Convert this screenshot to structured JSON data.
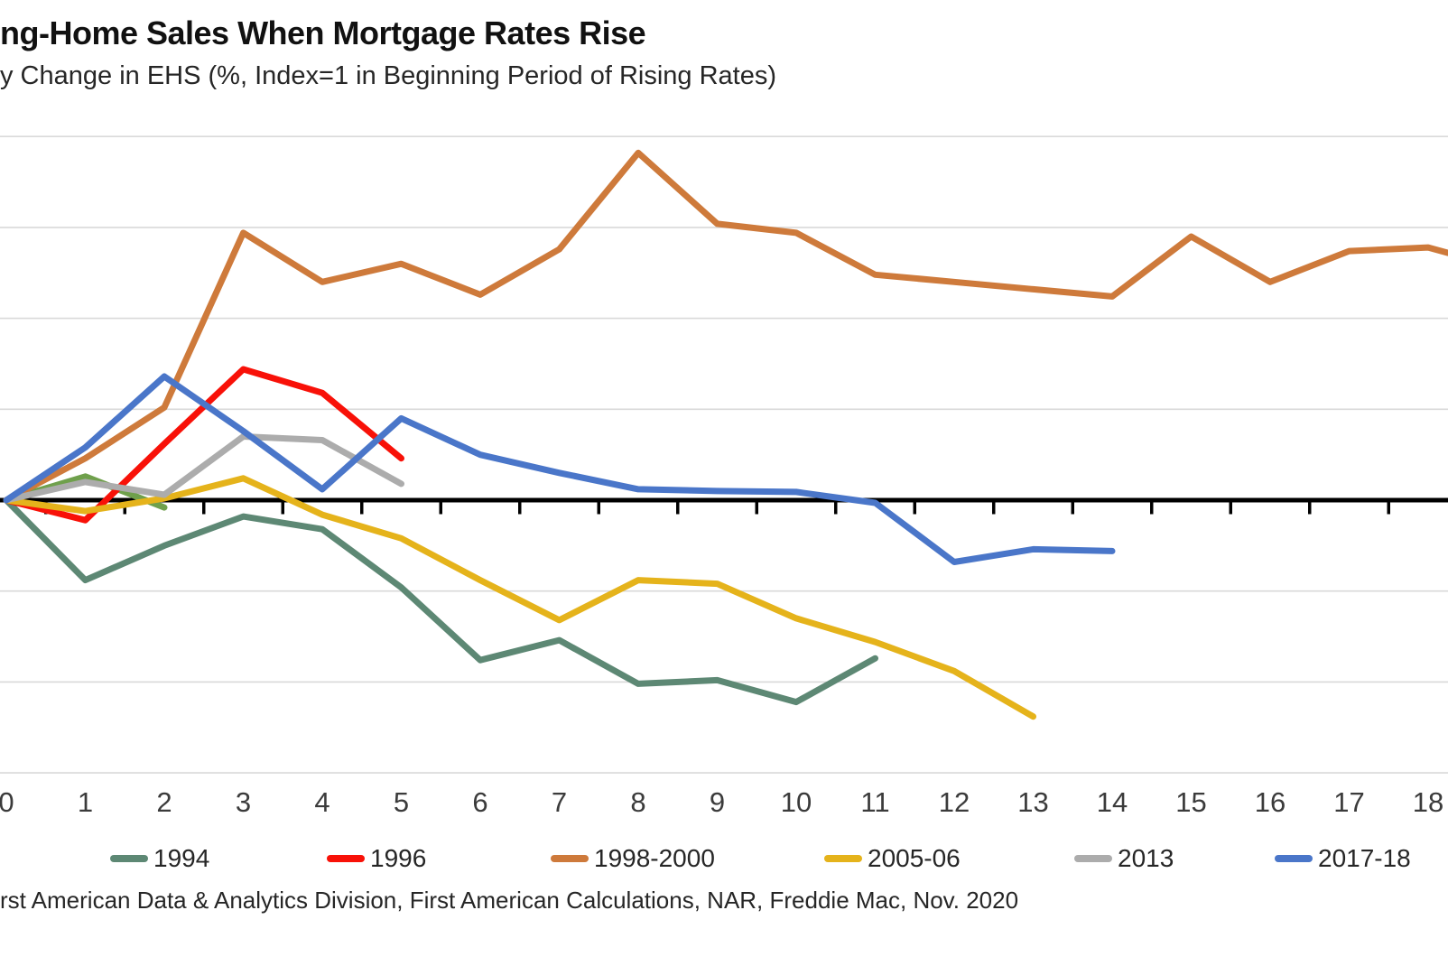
{
  "header": {
    "title": "ng-Home Sales When Mortgage Rates Rise",
    "subtitle": "y Change in EHS (%, Index=1 in Beginning Period of Rising Rates)"
  },
  "footer": {
    "source": "rst American Data & Analytics Division, First American Calculations, NAR, Freddie Mac, Nov. 2020"
  },
  "colors": {
    "axis": "#000000",
    "gridline": "#D9D9D9",
    "tick_label": "#3B3B3B"
  },
  "chart_data": {
    "type": "line",
    "title": "ng-Home Sales When Mortgage Rates Rise",
    "subtitle": "y Change in EHS (%, Index=1 in Beginning Period of Rising Rates)",
    "xlabel": "",
    "ylabel": "",
    "x_tick_labels": [
      "0",
      "1",
      "2",
      "3",
      "4",
      "5",
      "6",
      "7",
      "8",
      "9",
      "10",
      "11",
      "12",
      "13",
      "14",
      "15",
      "16",
      "17",
      "18"
    ],
    "baseline_value": 1.0,
    "gridline_values": [
      1.2,
      1.15,
      1.1,
      1.05,
      0.95,
      0.9,
      0.85
    ],
    "ylim": [
      0.845,
      1.225
    ],
    "grid_on": true,
    "legend_position": "bottom",
    "series": [
      {
        "label": "",
        "color": "#6FA04C",
        "in_legend": false,
        "x": [
          0,
          1,
          2
        ],
        "values": [
          1.0,
          1.013,
          0.996
        ]
      },
      {
        "label": "1994",
        "color": "#5D8874",
        "in_legend": true,
        "x": [
          0,
          1,
          2,
          3,
          4,
          5,
          6,
          7,
          8,
          9,
          10,
          11
        ],
        "values": [
          1.0,
          0.956,
          0.975,
          0.991,
          0.984,
          0.952,
          0.912,
          0.923,
          0.899,
          0.901,
          0.889,
          0.913
        ]
      },
      {
        "label": "1996",
        "color": "#F81108",
        "in_legend": true,
        "x": [
          0,
          1,
          2,
          3,
          4,
          5
        ],
        "values": [
          1.0,
          0.989,
          1.031,
          1.072,
          1.059,
          1.023
        ]
      },
      {
        "label": "1998-2000",
        "color": "#CE7A3B",
        "in_legend": true,
        "x": [
          0,
          1,
          2,
          3,
          4,
          5,
          6,
          7,
          8,
          9,
          10,
          11,
          12,
          13,
          14,
          15,
          16,
          17,
          18,
          18.25
        ],
        "values": [
          1.0,
          1.023,
          1.051,
          1.147,
          1.12,
          1.13,
          1.113,
          1.138,
          1.191,
          1.152,
          1.147,
          1.124,
          1.12,
          1.116,
          1.112,
          1.145,
          1.12,
          1.137,
          1.139,
          1.136
        ]
      },
      {
        "label": "2005-06",
        "color": "#E5B31B",
        "in_legend": true,
        "x": [
          0,
          1,
          2,
          3,
          4,
          5,
          6,
          7,
          8,
          9,
          10,
          11,
          12,
          13
        ],
        "values": [
          1.0,
          0.994,
          1.001,
          1.012,
          0.992,
          0.979,
          0.956,
          0.934,
          0.956,
          0.954,
          0.935,
          0.922,
          0.906,
          0.881
        ]
      },
      {
        "label": "2013",
        "color": "#ACACAC",
        "in_legend": true,
        "x": [
          0,
          1,
          2,
          3,
          4,
          5
        ],
        "values": [
          1.0,
          1.01,
          1.003,
          1.035,
          1.033,
          1.009
        ]
      },
      {
        "label": "2017-18",
        "color": "#4A76C9",
        "in_legend": true,
        "x": [
          0,
          1,
          2,
          3,
          4,
          5,
          6,
          7,
          8,
          9,
          10,
          11,
          12,
          13,
          14
        ],
        "values": [
          1.0,
          1.029,
          1.068,
          1.038,
          1.006,
          1.045,
          1.025,
          1.015,
          1.006,
          1.005,
          1.0045,
          0.9985,
          0.966,
          0.973,
          0.972
        ]
      }
    ]
  }
}
